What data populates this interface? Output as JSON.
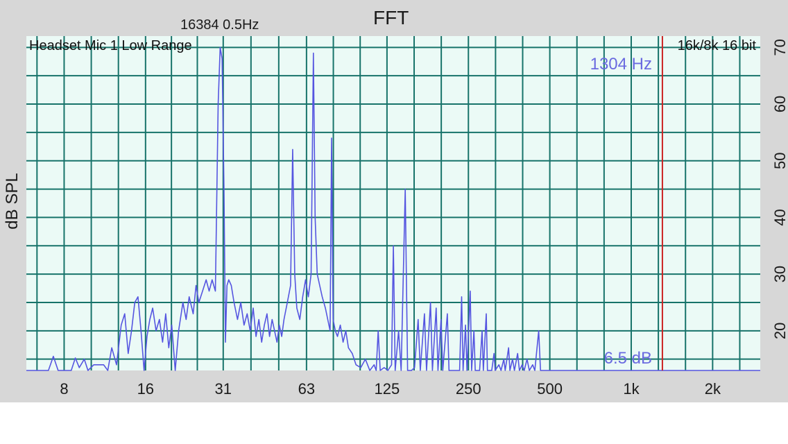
{
  "header": {
    "title": "FFT",
    "fft_info": "16384  0.5Hz"
  },
  "chart_data": {
    "type": "line",
    "title": "FFT",
    "ylabel": "dB SPL",
    "xlabel": "",
    "x_scale": "log2",
    "xlim": [
      5.8,
      3000
    ],
    "ylim": [
      13,
      72
    ],
    "x_ticks": [
      {
        "value": 8,
        "label": "8"
      },
      {
        "value": 16,
        "label": "16"
      },
      {
        "value": 31,
        "label": "31"
      },
      {
        "value": 63,
        "label": "63"
      },
      {
        "value": 125,
        "label": "125"
      },
      {
        "value": 250,
        "label": "250"
      },
      {
        "value": 500,
        "label": "500"
      },
      {
        "value": 1000,
        "label": "1k"
      },
      {
        "value": 2000,
        "label": "2k"
      }
    ],
    "y_ticks": [
      {
        "value": 20,
        "label": "20"
      },
      {
        "value": 30,
        "label": "30"
      },
      {
        "value": 40,
        "label": "40"
      },
      {
        "value": 50,
        "label": "50"
      },
      {
        "value": 60,
        "label": "60"
      },
      {
        "value": 70,
        "label": "70"
      }
    ],
    "grid": true,
    "top_left_label": "Headset Mic 1 Low Range",
    "top_right_label": "16k/8k 16 bit",
    "cursor": {
      "freq": 1304,
      "label": "1304 Hz",
      "color": "#cc2222"
    },
    "floor_label": "6.5 dB",
    "series": [
      {
        "color": "#5555e0",
        "points": [
          [
            5.8,
            13
          ],
          [
            7.0,
            13
          ],
          [
            7.3,
            15.5
          ],
          [
            7.6,
            13
          ],
          [
            8.5,
            13
          ],
          [
            8.8,
            15.2
          ],
          [
            9.1,
            13.5
          ],
          [
            9.5,
            15
          ],
          [
            9.8,
            13
          ],
          [
            10.3,
            14
          ],
          [
            11.2,
            14
          ],
          [
            11.6,
            13
          ],
          [
            12.0,
            17
          ],
          [
            12.5,
            14
          ],
          [
            13.0,
            21
          ],
          [
            13.4,
            23
          ],
          [
            13.8,
            16
          ],
          [
            14.2,
            20
          ],
          [
            14.6,
            25
          ],
          [
            15.0,
            26
          ],
          [
            15.4,
            20
          ],
          [
            15.8,
            13
          ],
          [
            16.2,
            19
          ],
          [
            16.6,
            22
          ],
          [
            17.0,
            24
          ],
          [
            17.5,
            20
          ],
          [
            18.0,
            22
          ],
          [
            18.5,
            18
          ],
          [
            19.0,
            23
          ],
          [
            19.5,
            17
          ],
          [
            20.0,
            21
          ],
          [
            20.6,
            13
          ],
          [
            21.2,
            20
          ],
          [
            22.0,
            25
          ],
          [
            22.6,
            22
          ],
          [
            23.2,
            26
          ],
          [
            24.0,
            23
          ],
          [
            24.6,
            28
          ],
          [
            25.2,
            25
          ],
          [
            26.0,
            27
          ],
          [
            26.8,
            29
          ],
          [
            27.5,
            27
          ],
          [
            28.2,
            29
          ],
          [
            29.0,
            27
          ],
          [
            29.7,
            60
          ],
          [
            30.2,
            70
          ],
          [
            30.7,
            68
          ],
          [
            31.2,
            45
          ],
          [
            31.6,
            18
          ],
          [
            32.0,
            28
          ],
          [
            32.5,
            29
          ],
          [
            33.2,
            28
          ],
          [
            34.0,
            25
          ],
          [
            35.0,
            22
          ],
          [
            36.0,
            25
          ],
          [
            37.0,
            21
          ],
          [
            38.0,
            23
          ],
          [
            39.0,
            20
          ],
          [
            40.0,
            24
          ],
          [
            41.0,
            19
          ],
          [
            42.0,
            22
          ],
          [
            43.0,
            18
          ],
          [
            44.0,
            21
          ],
          [
            45.0,
            23
          ],
          [
            46.0,
            19
          ],
          [
            47.0,
            22
          ],
          [
            48.0,
            20
          ],
          [
            49.0,
            18
          ],
          [
            50.0,
            21
          ],
          [
            51.0,
            19
          ],
          [
            52.0,
            22
          ],
          [
            53.5,
            25
          ],
          [
            55.0,
            28
          ],
          [
            56.0,
            52
          ],
          [
            57.0,
            30
          ],
          [
            58.0,
            24
          ],
          [
            59.5,
            22
          ],
          [
            61.0,
            26
          ],
          [
            62.5,
            29
          ],
          [
            64.0,
            26
          ],
          [
            65.5,
            30
          ],
          [
            66.8,
            69
          ],
          [
            67.8,
            40
          ],
          [
            69.0,
            30
          ],
          [
            70.5,
            28
          ],
          [
            72.0,
            26
          ],
          [
            74.0,
            24
          ],
          [
            75.5,
            22
          ],
          [
            77.0,
            20
          ],
          [
            78.0,
            54
          ],
          [
            79.0,
            22
          ],
          [
            80.5,
            20
          ],
          [
            82.0,
            19
          ],
          [
            84.0,
            21
          ],
          [
            86.0,
            18
          ],
          [
            88.0,
            20
          ],
          [
            90.0,
            17
          ],
          [
            93.0,
            16
          ],
          [
            96.0,
            14
          ],
          [
            100.0,
            13.5
          ],
          [
            104.0,
            15
          ],
          [
            108.0,
            13
          ],
          [
            112.0,
            14
          ],
          [
            114.0,
            13
          ],
          [
            116.0,
            20
          ],
          [
            118.0,
            13
          ],
          [
            122.0,
            13.5
          ],
          [
            126.0,
            13
          ],
          [
            130.0,
            14
          ],
          [
            132.0,
            35
          ],
          [
            134.0,
            13
          ],
          [
            138.0,
            20
          ],
          [
            141.0,
            13
          ],
          [
            146.0,
            45
          ],
          [
            149.0,
            13
          ],
          [
            154.0,
            13
          ],
          [
            158.0,
            13.5
          ],
          [
            163.0,
            22
          ],
          [
            166.0,
            13
          ],
          [
            172.0,
            23
          ],
          [
            175.0,
            13
          ],
          [
            181.0,
            25
          ],
          [
            184.0,
            13
          ],
          [
            190.0,
            24
          ],
          [
            193.0,
            13
          ],
          [
            198.0,
            22
          ],
          [
            201.0,
            13
          ],
          [
            209.0,
            23
          ],
          [
            212.0,
            13
          ],
          [
            232.0,
            13
          ],
          [
            236.0,
            26
          ],
          [
            239.0,
            13
          ],
          [
            244.0,
            21
          ],
          [
            247.0,
            13
          ],
          [
            254.0,
            27
          ],
          [
            257.0,
            13
          ],
          [
            262.0,
            20
          ],
          [
            265.0,
            13
          ],
          [
            275.0,
            13
          ],
          [
            281.0,
            20
          ],
          [
            284.0,
            13
          ],
          [
            291.0,
            23
          ],
          [
            294.0,
            13
          ],
          [
            305.0,
            13
          ],
          [
            311.0,
            16
          ],
          [
            314.0,
            13
          ],
          [
            324.0,
            14
          ],
          [
            330.0,
            13
          ],
          [
            338.0,
            15
          ],
          [
            342.0,
            13
          ],
          [
            352.0,
            17
          ],
          [
            356.0,
            13
          ],
          [
            364.0,
            15
          ],
          [
            370.0,
            13
          ],
          [
            380.0,
            16
          ],
          [
            386.0,
            13
          ],
          [
            395.0,
            14
          ],
          [
            402.0,
            13
          ],
          [
            412.0,
            15
          ],
          [
            420.0,
            13
          ],
          [
            432.0,
            14
          ],
          [
            440.0,
            13
          ],
          [
            455.0,
            20
          ],
          [
            462.0,
            13
          ],
          [
            3000,
            13
          ]
        ]
      }
    ]
  },
  "colors": {
    "background": "#d7d7d7",
    "plot_background": "#ebfaf6",
    "grid": "#17736a",
    "trace": "#5555e0",
    "cursor": "#cc2222",
    "overlay_text": "#6a6ae0"
  }
}
